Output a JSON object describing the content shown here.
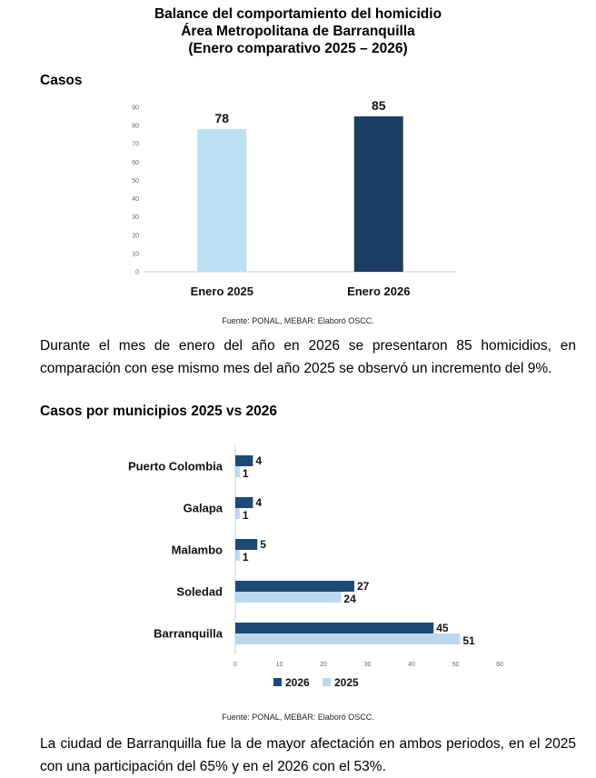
{
  "title": {
    "line1": "Balance del comportamiento del homicidio",
    "line2": "Área Metropolitana de Barranquilla",
    "line3": "(Enero comparativo 2025 – 2026)"
  },
  "section1": {
    "heading": "Casos"
  },
  "section2": {
    "heading": "Casos por municipios 2025 vs 2026"
  },
  "source_text": "Fuente: PONAL, MEBAR: Elaboró OSCC.",
  "paragraph1": "Durante el mes de enero del año en 2026 se presentaron 85 homicidios, en comparación con ese mismo mes del año 2025 se observó un incremento del 9%.",
  "paragraph2": "La ciudad de Barranquilla fue la de mayor afectación en ambos periodos, en el 2025 con una participación del 65% y en el 2026 con el 53%.",
  "chart_data": [
    {
      "type": "bar",
      "categories": [
        "Enero 2025",
        "Enero 2026"
      ],
      "values": [
        78,
        85
      ],
      "colors": [
        "#bde0f2",
        "#1b3c63"
      ],
      "ylim": [
        0,
        90
      ],
      "yticks": [
        0,
        10,
        20,
        30,
        40,
        50,
        60,
        70,
        80,
        90
      ],
      "grid": false
    },
    {
      "type": "bar",
      "orientation": "horizontal",
      "categories": [
        "Puerto Colombia",
        "Galapa",
        "Malambo",
        "Soledad",
        "Barranquilla"
      ],
      "series": [
        {
          "name": "2026",
          "values": [
            4,
            4,
            5,
            27,
            45
          ],
          "color": "#1f4a78"
        },
        {
          "name": "2025",
          "values": [
            1,
            1,
            1,
            24,
            51
          ],
          "color": "#bdd7ee"
        }
      ],
      "xlim": [
        0,
        60
      ],
      "xticks": [
        0,
        10,
        20,
        30,
        40,
        50,
        60
      ],
      "legend": "bottom",
      "grid": false
    }
  ]
}
